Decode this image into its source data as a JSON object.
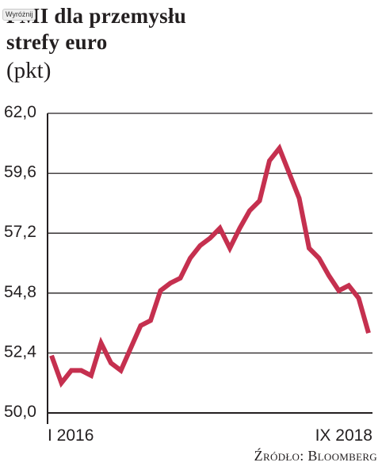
{
  "badge": {
    "label": "Wyróżnij"
  },
  "chart_data": {
    "type": "line",
    "title_lines": [
      "PMI dla przemysłu",
      "strefy euro"
    ],
    "unit": "(pkt)",
    "xlabel": "",
    "ylabel": "",
    "x_tick_labels": [
      "I 2016",
      "IX 2018"
    ],
    "x": [
      "2016-01",
      "2016-02",
      "2016-03",
      "2016-04",
      "2016-05",
      "2016-06",
      "2016-07",
      "2016-08",
      "2016-09",
      "2016-10",
      "2016-11",
      "2016-12",
      "2017-01",
      "2017-02",
      "2017-03",
      "2017-04",
      "2017-05",
      "2017-06",
      "2017-07",
      "2017-08",
      "2017-09",
      "2017-10",
      "2017-11",
      "2017-12",
      "2018-01",
      "2018-02",
      "2018-03",
      "2018-04",
      "2018-05",
      "2018-06",
      "2018-07",
      "2018-08",
      "2018-09"
    ],
    "series": [
      {
        "values": [
          52.3,
          51.2,
          51.7,
          51.7,
          51.5,
          52.8,
          52.0,
          51.7,
          52.6,
          53.5,
          53.7,
          54.9,
          55.2,
          55.4,
          56.2,
          56.7,
          57.0,
          57.4,
          56.6,
          57.4,
          58.1,
          58.5,
          60.1,
          60.6,
          59.6,
          58.6,
          56.6,
          56.2,
          55.5,
          54.9,
          55.1,
          54.6,
          53.2
        ]
      }
    ],
    "yticks": [
      50.0,
      52.4,
      54.8,
      57.2,
      59.6,
      62.0
    ],
    "ytick_labels": [
      "50,0",
      "52,4",
      "54,8",
      "57,2",
      "59,6",
      "62,0"
    ],
    "ylim": [
      50.0,
      62.0
    ],
    "grid": "horizontal",
    "line_color": "#c5304f",
    "grid_color": "#231f20"
  },
  "source": "Źródło: Bloomberg"
}
